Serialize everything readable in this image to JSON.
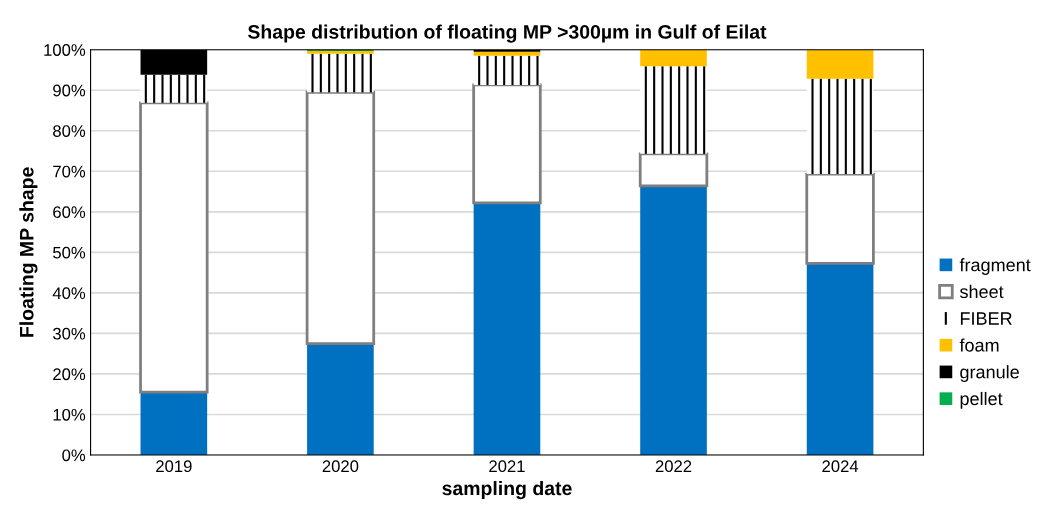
{
  "chart_data": {
    "type": "bar",
    "stacked": true,
    "title": "Shape distribution of floating MP >300µm in Gulf of Eilat",
    "xlabel": "sampling date",
    "ylabel": "Floating MP shape",
    "categories": [
      "2019",
      "2020",
      "2021",
      "2022",
      "2024"
    ],
    "series": [
      {
        "name": "fragment",
        "color": "#0070c0",
        "values": [
          15.5,
          27.5,
          62.2,
          66.4,
          47.3
        ]
      },
      {
        "name": "sheet",
        "color": "#ffffff",
        "values": [
          71.4,
          62,
          29.1,
          7.9,
          22
        ]
      },
      {
        "name": "FIBER",
        "color": "#ffffff",
        "values": [
          6.9,
          9.5,
          7.2,
          21.6,
          23.5
        ]
      },
      {
        "name": "foam",
        "color": "#ffc000",
        "values": [
          0,
          0.7,
          1.0,
          4.1,
          7.2
        ]
      },
      {
        "name": "granule",
        "color": "#000000",
        "values": [
          6.2,
          0,
          0.5,
          0,
          null
        ]
      },
      {
        "name": "pellet",
        "color": "#00b050",
        "values": [
          0,
          0.3,
          0,
          0,
          0
        ]
      }
    ],
    "ylim": [
      0,
      100
    ],
    "yticks": [
      {
        "value": 0,
        "label": "0%"
      },
      {
        "value": 10,
        "label": "10%"
      },
      {
        "value": 20,
        "label": "20%"
      },
      {
        "value": 30,
        "label": "30%"
      },
      {
        "value": 40,
        "label": "40%"
      },
      {
        "value": 50,
        "label": "50%"
      },
      {
        "value": 60,
        "label": "60%"
      },
      {
        "value": 70,
        "label": "70%"
      },
      {
        "value": 80,
        "label": "80%"
      },
      {
        "value": 90,
        "label": "90%"
      },
      {
        "value": 100,
        "label": "100%"
      }
    ],
    "grid": "y",
    "legend": "right"
  }
}
